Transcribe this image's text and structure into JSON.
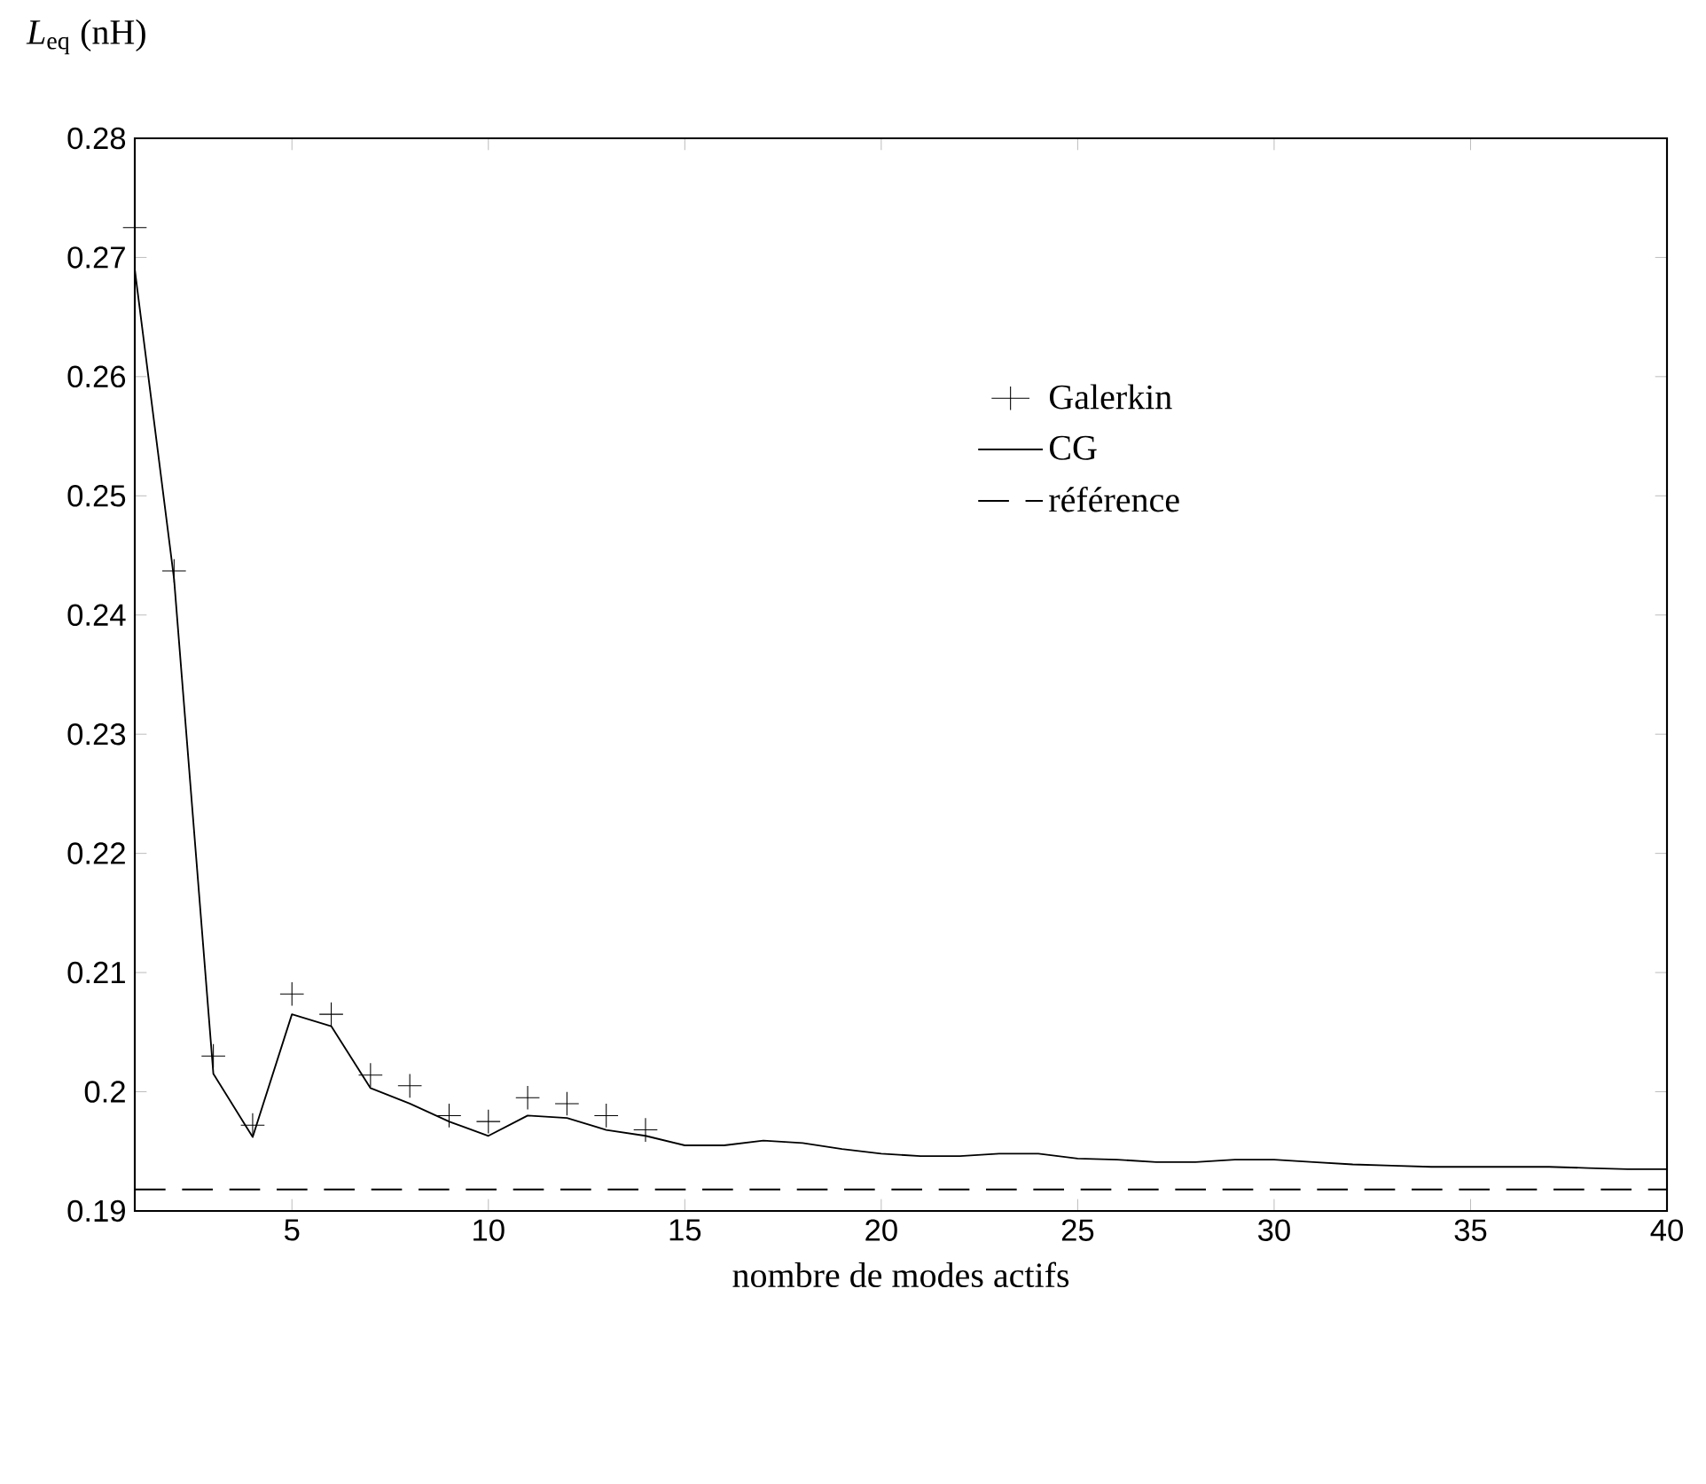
{
  "chart_data": {
    "type": "line",
    "xlabel": "nombre de modes actifs",
    "ylabel": "*L*$_{eq}$ (nH)",
    "xlim": [
      1,
      40
    ],
    "xticks": [
      5,
      10,
      15,
      20,
      25,
      30,
      35,
      40
    ],
    "ylim": [
      0.19,
      0.28
    ],
    "yticks": [
      0.19,
      0.2,
      0.21,
      0.22,
      0.23,
      0.24,
      0.25,
      0.26,
      0.27,
      0.28
    ],
    "grid": false,
    "legend": "right",
    "series": [
      {
        "name": "Galerkin",
        "type": "scatter",
        "marker": "cross",
        "color": "#000000",
        "x": [
          1,
          2,
          3,
          4,
          5,
          6,
          7,
          8,
          9,
          10,
          11,
          12,
          13,
          14
        ],
        "values": [
          0.2725,
          0.2437,
          0.203,
          0.1972,
          0.2082,
          0.2065,
          0.2014,
          0.2005,
          0.198,
          0.1975,
          0.1995,
          0.199,
          0.198,
          0.1968
        ]
      },
      {
        "name": "CG",
        "type": "line",
        "line_style": "solid",
        "color": "#000000",
        "x": [
          1,
          2,
          3,
          4,
          5,
          6,
          7,
          8,
          9,
          10,
          11,
          12,
          13,
          14,
          15,
          16,
          17,
          18,
          19,
          20,
          21,
          22,
          23,
          24,
          25,
          26,
          27,
          28,
          29,
          30,
          31,
          32,
          33,
          34,
          35,
          36,
          37,
          38,
          39,
          40
        ],
        "values": [
          0.269,
          0.243,
          0.2015,
          0.1962,
          0.2065,
          0.2055,
          0.2003,
          0.199,
          0.1975,
          0.1963,
          0.198,
          0.1978,
          0.1968,
          0.1963,
          0.1955,
          0.1955,
          0.1959,
          0.1957,
          0.1952,
          0.1948,
          0.1946,
          0.1946,
          0.1948,
          0.1948,
          0.1944,
          0.1943,
          0.1941,
          0.1941,
          0.1943,
          0.1943,
          0.1941,
          0.1939,
          0.1938,
          0.1937,
          0.1937,
          0.1937,
          0.1937,
          0.1936,
          0.1935,
          0.1935
        ]
      },
      {
        "name": "référence",
        "type": "line",
        "line_style": "dashed",
        "color": "#000000",
        "x": [
          1,
          40
        ],
        "values": [
          0.1918,
          0.1918
        ]
      }
    ]
  }
}
